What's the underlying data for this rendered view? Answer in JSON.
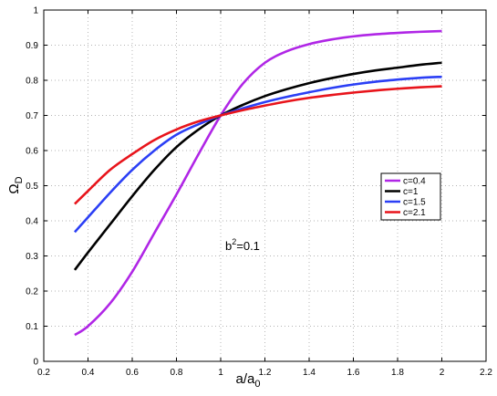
{
  "chart_data": {
    "type": "line",
    "title": "",
    "xlabel": {
      "base": "a/a",
      "sub": "0"
    },
    "ylabel": {
      "base": "Ω",
      "sub": "D"
    },
    "xlim": [
      0.2,
      2.2
    ],
    "ylim": [
      0,
      1
    ],
    "xticks": [
      0.2,
      0.4,
      0.6,
      0.8,
      1,
      1.2,
      1.4,
      1.6,
      1.8,
      2,
      2.2
    ],
    "xtick_labels": [
      "0.2",
      "0.4",
      "0.6",
      "0.8",
      "1",
      "1.2",
      "1.4",
      "1.6",
      "1.8",
      "2",
      "2.2"
    ],
    "yticks": [
      0,
      0.1,
      0.2,
      0.3,
      0.4,
      0.5,
      0.6,
      0.7,
      0.8,
      0.9,
      1
    ],
    "ytick_labels": [
      "0",
      "0.1",
      "0.2",
      "0.3",
      "0.4",
      "0.5",
      "0.6",
      "0.7",
      "0.8",
      "0.9",
      "1"
    ],
    "grid": true,
    "legend_position": "right",
    "annotation": {
      "base": "b",
      "sup": "2",
      "rest": "=0.1"
    },
    "series": [
      {
        "name": "c=0.4",
        "color": "#b026e6",
        "x": [
          0.34,
          0.4,
          0.5,
          0.6,
          0.7,
          0.8,
          0.9,
          1.0,
          1.1,
          1.2,
          1.3,
          1.4,
          1.5,
          1.6,
          1.7,
          1.8,
          1.9,
          2.0
        ],
        "y": [
          0.075,
          0.1,
          0.165,
          0.255,
          0.365,
          0.475,
          0.59,
          0.7,
          0.79,
          0.85,
          0.883,
          0.903,
          0.916,
          0.925,
          0.931,
          0.935,
          0.938,
          0.94
        ]
      },
      {
        "name": "c=1",
        "color": "#000000",
        "x": [
          0.34,
          0.4,
          0.5,
          0.6,
          0.7,
          0.8,
          0.9,
          1.0,
          1.1,
          1.2,
          1.3,
          1.4,
          1.5,
          1.6,
          1.7,
          1.8,
          1.9,
          2.0
        ],
        "y": [
          0.26,
          0.31,
          0.39,
          0.47,
          0.545,
          0.61,
          0.66,
          0.7,
          0.73,
          0.755,
          0.775,
          0.792,
          0.806,
          0.818,
          0.828,
          0.836,
          0.844,
          0.85
        ]
      },
      {
        "name": "c=1.5",
        "color": "#2b3ff5",
        "x": [
          0.34,
          0.4,
          0.5,
          0.6,
          0.7,
          0.8,
          0.9,
          1.0,
          1.1,
          1.2,
          1.3,
          1.4,
          1.5,
          1.6,
          1.7,
          1.8,
          1.9,
          2.0
        ],
        "y": [
          0.368,
          0.41,
          0.48,
          0.545,
          0.6,
          0.645,
          0.675,
          0.7,
          0.72,
          0.738,
          0.753,
          0.766,
          0.778,
          0.788,
          0.796,
          0.802,
          0.807,
          0.81
        ]
      },
      {
        "name": "c=2.1",
        "color": "#e8141b",
        "x": [
          0.34,
          0.4,
          0.5,
          0.6,
          0.7,
          0.8,
          0.9,
          1.0,
          1.1,
          1.2,
          1.3,
          1.4,
          1.5,
          1.6,
          1.7,
          1.8,
          1.9,
          2.0
        ],
        "y": [
          0.448,
          0.485,
          0.545,
          0.59,
          0.63,
          0.66,
          0.683,
          0.7,
          0.715,
          0.728,
          0.74,
          0.75,
          0.758,
          0.765,
          0.771,
          0.776,
          0.78,
          0.783
        ]
      }
    ]
  }
}
